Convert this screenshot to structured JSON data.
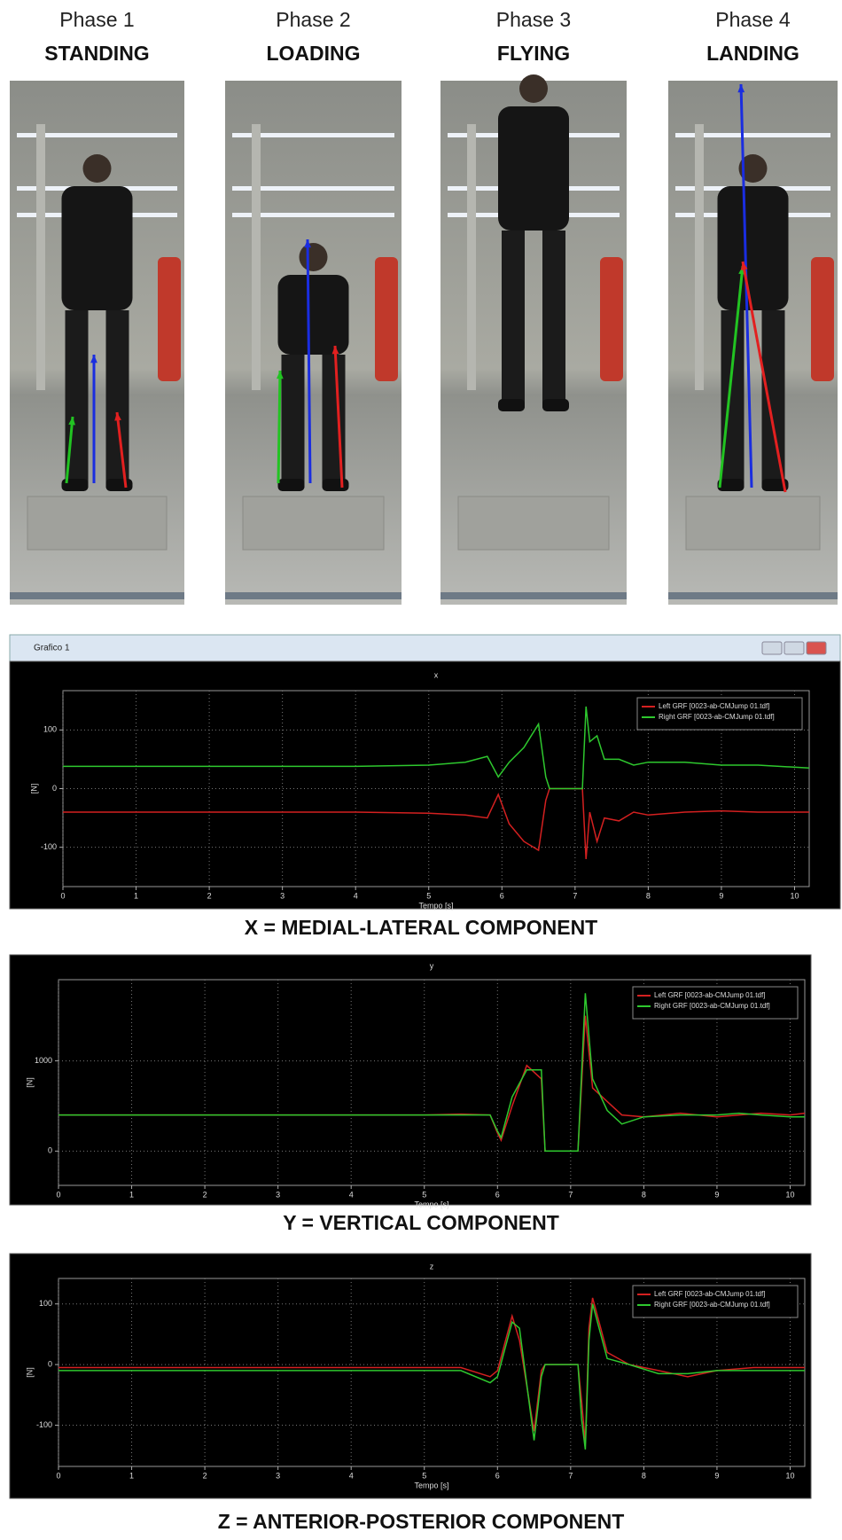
{
  "header": {
    "phases": [
      {
        "label": "Phase 1",
        "name": "STANDING"
      },
      {
        "label": "Phase 2",
        "name": "LOADING"
      },
      {
        "label": "Phase 3",
        "name": "FLYING"
      },
      {
        "label": "Phase 4",
        "name": "LANDING"
      }
    ]
  },
  "window_title": "Grafico 1",
  "chart_data": [
    {
      "type": "line",
      "title": "x",
      "caption": "X = MEDIAL-LATERAL COMPONENT",
      "xlabel": "Tempo [s]",
      "ylabel": "[N]",
      "x": [
        0,
        1,
        2,
        3,
        4,
        5,
        5.5,
        5.8,
        5.95,
        6.1,
        6.3,
        6.5,
        6.6,
        6.65,
        7.1,
        7.15,
        7.2,
        7.3,
        7.4,
        7.6,
        7.8,
        8,
        8.5,
        9,
        9.5,
        10.2
      ],
      "series": [
        {
          "name": "Left GRF [0023-ab-CMJump 01.tdf]",
          "color": "#d42020",
          "values": [
            -40,
            -40,
            -40,
            -40,
            -40,
            -42,
            -45,
            -50,
            -10,
            -60,
            -90,
            -105,
            -20,
            0,
            0,
            -120,
            -40,
            -90,
            -50,
            -55,
            -40,
            -45,
            -40,
            -38,
            -40,
            -40
          ]
        },
        {
          "name": "Right GRF [0023-ab-CMJump 01.tdf]",
          "color": "#2ec82e",
          "values": [
            38,
            38,
            38,
            38,
            38,
            40,
            45,
            55,
            20,
            45,
            70,
            110,
            20,
            0,
            0,
            140,
            80,
            90,
            50,
            50,
            40,
            45,
            45,
            40,
            40,
            35
          ]
        }
      ],
      "xlim": [
        0,
        10.2
      ],
      "xticks": [
        0,
        1,
        2,
        3,
        4,
        5,
        6,
        7,
        8,
        9,
        10
      ],
      "ylim": [
        -167,
        167
      ],
      "yticks": [
        -100,
        0,
        100
      ],
      "grid": true,
      "legend": "upper right"
    },
    {
      "type": "line",
      "title": "y",
      "caption": "Y = VERTICAL COMPONENT",
      "xlabel": "Tempo [s]",
      "ylabel": "[N]",
      "x": [
        0,
        1,
        2,
        3,
        4,
        5,
        5.5,
        5.9,
        6.0,
        6.05,
        6.2,
        6.4,
        6.6,
        6.65,
        7.1,
        7.2,
        7.3,
        7.5,
        7.7,
        8,
        8.5,
        9,
        9.3,
        9.6,
        10,
        10.2
      ],
      "series": [
        {
          "name": "Left GRF [0023-ab-CMJump 01.tdf]",
          "color": "#d42020",
          "values": [
            400,
            400,
            400,
            400,
            400,
            400,
            410,
            400,
            200,
            120,
            500,
            950,
            800,
            0,
            0,
            1500,
            700,
            550,
            400,
            380,
            420,
            380,
            400,
            420,
            400,
            420
          ]
        },
        {
          "name": "Right GRF [0023-ab-CMJump 01.tdf]",
          "color": "#2ec82e",
          "values": [
            400,
            400,
            400,
            400,
            400,
            400,
            400,
            400,
            220,
            150,
            600,
            900,
            900,
            0,
            0,
            1750,
            800,
            450,
            300,
            380,
            400,
            400,
            420,
            400,
            380,
            380
          ]
        }
      ],
      "xlim": [
        0,
        10.2
      ],
      "xticks": [
        0,
        1,
        2,
        3,
        4,
        5,
        6,
        7,
        8,
        9,
        10
      ],
      "ylim": [
        -380,
        1900
      ],
      "yticks": [
        0,
        1000
      ],
      "grid": true,
      "legend": "upper right"
    },
    {
      "type": "line",
      "title": "z",
      "caption": "Z = ANTERIOR-POSTERIOR COMPONENT",
      "xlabel": "Tempo [s]",
      "ylabel": "[N]",
      "x": [
        0,
        1,
        2,
        3,
        4,
        5,
        5.5,
        5.9,
        6.0,
        6.2,
        6.3,
        6.5,
        6.6,
        6.65,
        7.1,
        7.15,
        7.2,
        7.25,
        7.3,
        7.5,
        7.8,
        8.2,
        8.6,
        9,
        9.5,
        10.2
      ],
      "series": [
        {
          "name": "Left GRF [0023-ab-CMJump 01.tdf]",
          "color": "#d42020",
          "values": [
            -5,
            -5,
            -5,
            -5,
            -5,
            -5,
            -5,
            -20,
            -10,
            80,
            40,
            -110,
            -10,
            0,
            0,
            -60,
            -130,
            60,
            110,
            20,
            0,
            -10,
            -20,
            -10,
            -5,
            -5
          ]
        },
        {
          "name": "Right GRF [0023-ab-CMJump 01.tdf]",
          "color": "#2ec82e",
          "values": [
            -10,
            -10,
            -10,
            -10,
            -10,
            -10,
            -10,
            -30,
            -20,
            70,
            60,
            -125,
            -20,
            0,
            0,
            -90,
            -140,
            40,
            100,
            10,
            0,
            -15,
            -15,
            -10,
            -10,
            -10
          ]
        }
      ],
      "xlim": [
        0,
        10.2
      ],
      "xticks": [
        0,
        1,
        2,
        3,
        4,
        5,
        6,
        7,
        8,
        9,
        10
      ],
      "ylim": [
        -168,
        142
      ],
      "yticks": [
        -100,
        0,
        100
      ],
      "grid": true,
      "legend": "upper right"
    }
  ]
}
